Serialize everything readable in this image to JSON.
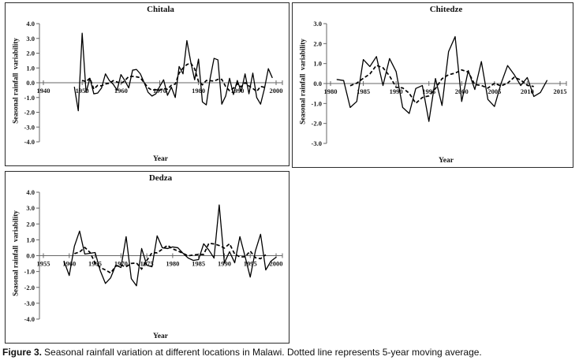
{
  "figure": {
    "caption_label": "Figure 3.",
    "caption_text": "Seasonal rainfall variation at different locations in Malawi. Dotted line represents 5-year moving average."
  },
  "colors": {
    "data_line": "#000000",
    "axis_line": "#666666",
    "panel_border": "#2b2b2b",
    "text": "#1a1a1a",
    "background": "#ffffff"
  },
  "chart_data": [
    {
      "type": "line",
      "title": "Chitala",
      "xlabel": "Year",
      "ylabel": "Seasonal rainfall  variability",
      "xlim": [
        1940,
        2000
      ],
      "ylim": [
        -4,
        4
      ],
      "grid": false,
      "legend": "none",
      "x_ticks": [
        1940,
        1950,
        1960,
        1970,
        1980,
        1990,
        2000
      ],
      "x_tick_labels": [
        "1940",
        "1950",
        "1960",
        "1970",
        "1980",
        "1990",
        "2000"
      ],
      "y_ticks": [
        4,
        3,
        2,
        1,
        0,
        -1,
        -2,
        -3,
        -4
      ],
      "y_tick_labels": [
        "4.0",
        "3.0",
        "2.0",
        "1.0",
        "0.0",
        "-1.0",
        "-2.0",
        "-3.0",
        "-4.0"
      ],
      "series": [
        {
          "name": "annual seasonal rainfall variability",
          "line_style": "solid",
          "x_start": 1948,
          "x_step": 1,
          "values": [
            -0.3,
            -1.9,
            3.35,
            -0.65,
            0.3,
            -0.75,
            -0.7,
            -0.35,
            0.6,
            0.15,
            -0.1,
            -0.5,
            0.55,
            0.15,
            -0.35,
            0.85,
            0.9,
            0.6,
            0.0,
            -0.65,
            -0.9,
            -0.75,
            -0.25,
            0.2,
            -0.85,
            -0.3,
            -1.0,
            1.1,
            0.6,
            2.85,
            1.4,
            0.2,
            1.6,
            -1.3,
            -1.5,
            0.3,
            1.65,
            1.55,
            -1.45,
            -0.9,
            0.3,
            -0.8,
            0.15,
            -0.6,
            0.6,
            -0.75,
            0.65,
            -1.0,
            -1.45,
            -0.4,
            0.95,
            0.35
          ]
        },
        {
          "name": "5-year moving average",
          "line_style": "dashed",
          "derivation": "centered 5-year moving average of annual series"
        }
      ]
    },
    {
      "type": "line",
      "title": "Chitedze",
      "xlabel": "Year",
      "ylabel": "Seasonal rainfall  variability",
      "xlim": [
        1980,
        2015
      ],
      "ylim": [
        -3,
        3
      ],
      "grid": false,
      "legend": "none",
      "x_ticks": [
        1980,
        1985,
        1990,
        1995,
        2000,
        2005,
        2010,
        2015
      ],
      "x_tick_labels": [
        "1980",
        "1985",
        "1990",
        "1995",
        "2000",
        "2005",
        "2010",
        "2015"
      ],
      "y_ticks": [
        3,
        2,
        1,
        0,
        -1,
        -2,
        -3
      ],
      "y_tick_labels": [
        "3.0",
        "2.0",
        "1.0",
        "0.0",
        "-1.0",
        "-2.0",
        "-3.0"
      ],
      "series": [
        {
          "name": "annual seasonal rainfall variability",
          "line_style": "solid",
          "x_start": 1981,
          "x_step": 1,
          "values": [
            0.2,
            0.15,
            -1.2,
            -0.9,
            1.2,
            0.85,
            1.35,
            -0.1,
            1.25,
            0.6,
            -1.2,
            -1.5,
            -0.25,
            -0.1,
            -1.9,
            0.25,
            -1.1,
            1.6,
            2.35,
            -0.9,
            0.65,
            -0.3,
            1.1,
            -0.8,
            -1.15,
            0.0,
            0.9,
            0.45,
            -0.1,
            0.3,
            -0.65,
            -0.45,
            0.15
          ]
        },
        {
          "name": "5-year moving average",
          "line_style": "dashed",
          "derivation": "centered 5-year moving average of annual series"
        }
      ]
    },
    {
      "type": "line",
      "title": "Dedza",
      "xlabel": "Year",
      "ylabel": "Seasonal rainfall  variability",
      "xlim": [
        1955,
        2000
      ],
      "ylim": [
        -4,
        4
      ],
      "grid": false,
      "legend": "none",
      "x_ticks": [
        1955,
        1960,
        1965,
        1970,
        1975,
        1980,
        1985,
        1990,
        1995,
        2000
      ],
      "x_tick_labels": [
        "1955",
        "1960",
        "1965",
        "1970",
        "1975",
        "1980",
        "1985",
        "1990",
        "1995",
        "2000"
      ],
      "y_ticks": [
        4,
        3,
        2,
        1,
        0,
        -1,
        -2,
        -3,
        -4
      ],
      "y_tick_labels": [
        "4.0",
        "3.0",
        "2.0",
        "1.0",
        "0.0",
        "-1.0",
        "-2.0",
        "-3.0",
        "-4.0"
      ],
      "series": [
        {
          "name": "annual seasonal rainfall variability",
          "line_style": "solid",
          "x_start": 1959,
          "x_step": 1,
          "values": [
            -0.35,
            -1.25,
            0.6,
            1.55,
            0.1,
            0.15,
            0.2,
            -0.95,
            -1.75,
            -1.4,
            -0.6,
            -0.75,
            1.2,
            -1.45,
            -1.9,
            0.45,
            -0.6,
            -0.7,
            1.25,
            0.5,
            0.45,
            0.55,
            0.5,
            0.15,
            -0.15,
            -0.3,
            -0.25,
            0.75,
            0.35,
            -0.15,
            3.2,
            -0.45,
            0.25,
            -0.45,
            1.2,
            -0.05,
            -1.35,
            0.3,
            1.35,
            -0.9,
            -0.35,
            -0.1
          ]
        },
        {
          "name": "5-year moving average",
          "line_style": "dashed",
          "derivation": "centered 5-year moving average of annual series"
        }
      ]
    }
  ]
}
